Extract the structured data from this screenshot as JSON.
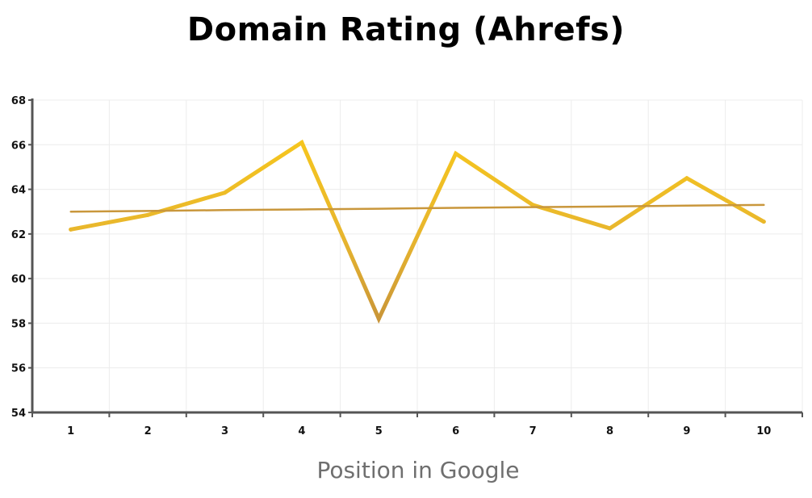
{
  "chart_data": {
    "type": "line",
    "title": "Domain Rating (Ahrefs)",
    "xlabel": "Position in Google",
    "ylabel": "",
    "categories": [
      "1",
      "2",
      "3",
      "4",
      "5",
      "6",
      "7",
      "8",
      "9",
      "10"
    ],
    "series": [
      {
        "values": [
          62.2,
          62.85,
          63.85,
          66.1,
          58.2,
          65.6,
          63.3,
          62.25,
          64.5,
          62.55
        ],
        "color": "#f2be22"
      },
      {
        "values": [
          63.0,
          63.03,
          63.07,
          63.1,
          63.13,
          63.17,
          63.2,
          63.23,
          63.27,
          63.3
        ],
        "color": "#c9973c",
        "style": "trendline"
      }
    ],
    "ylim": [
      54,
      68
    ],
    "yticks": [
      "54",
      "56",
      "58",
      "60",
      "62",
      "64",
      "66",
      "68"
    ],
    "grid": true,
    "legend": "none"
  }
}
